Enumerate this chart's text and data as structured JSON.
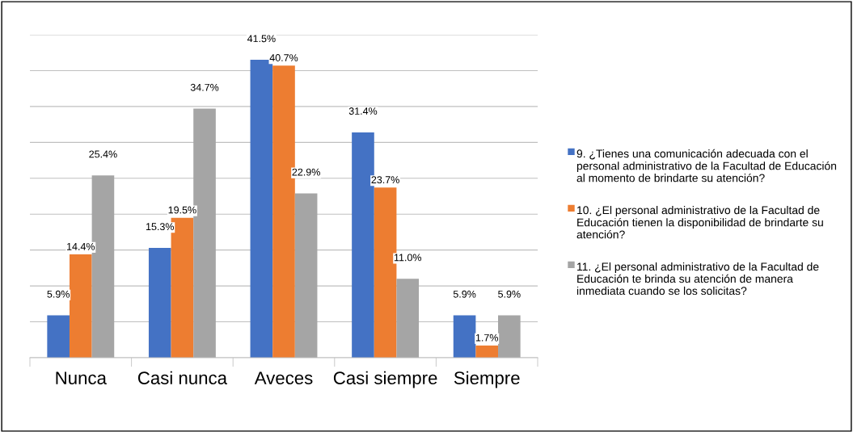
{
  "chart_data": {
    "type": "bar",
    "categories": [
      "Nunca",
      "Casi nunca",
      "Aveces",
      "Casi siempre",
      "Siempre"
    ],
    "series": [
      {
        "name": "9. ¿Tienes una comunicación adecuada con el personal administrativo de la Facultad de Educación al momento de brindarte su atención?",
        "color": "#4472c4",
        "values": [
          5.9,
          15.3,
          41.5,
          31.4,
          5.9
        ],
        "value_labels": [
          "5.9%",
          "15.3%",
          "41.5%",
          "31.4%",
          "5.9%"
        ]
      },
      {
        "name": "10. ¿El personal administrativo de la Facultad de Educación tienen la disponibilidad de brindarte su atención?",
        "color": "#ed7d31",
        "values": [
          14.4,
          19.5,
          40.7,
          23.7,
          1.7
        ],
        "value_labels": [
          "14.4%",
          "19.5%",
          "40.7%",
          "23.7%",
          "1.7%"
        ]
      },
      {
        "name": "11. ¿El personal administrativo de la Facultad de Educación te brinda su atención de manera inmediata cuando se los solicitas?",
        "color": "#a5a5a5",
        "values": [
          25.4,
          34.7,
          22.9,
          11.0,
          5.9
        ],
        "value_labels": [
          "25.4%",
          "34.7%",
          "22.9%",
          "11.0%",
          "5.9%"
        ]
      }
    ],
    "ylim": [
      0,
      45
    ],
    "yticks": [
      {
        "value": 0,
        "label": null
      },
      {
        "value": 5,
        "label": null
      },
      {
        "value": 10,
        "label": null
      },
      {
        "value": 15,
        "label": null
      },
      {
        "value": 20,
        "label": null
      },
      {
        "value": 25,
        "label": null
      },
      {
        "value": 30,
        "label": null
      },
      {
        "value": 35,
        "label": null
      },
      {
        "value": 40,
        "label": null
      },
      {
        "value": 45,
        "label": null
      }
    ],
    "grid": "y",
    "legend": "right",
    "tick_labels": "x"
  }
}
